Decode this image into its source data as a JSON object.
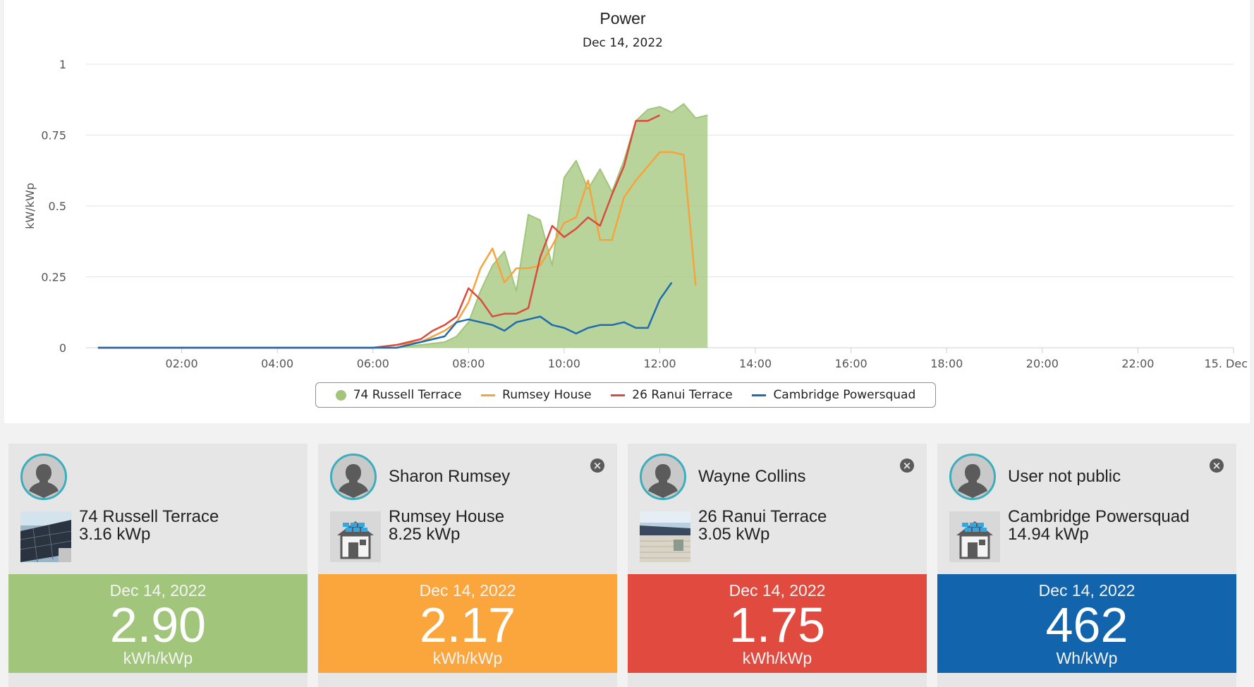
{
  "chart_data": {
    "type": "area",
    "title": "Power",
    "subtitle": "Dec 14, 2022",
    "ylabel": "kW/kWp",
    "ylim": [
      0,
      1
    ],
    "yticks": [
      "0",
      "0.25",
      "0.5",
      "0.75",
      "1"
    ],
    "ytick_values": [
      0,
      0.25,
      0.5,
      0.75,
      1
    ],
    "xlim": [
      0,
      24
    ],
    "xticks": [
      "02:00",
      "04:00",
      "06:00",
      "08:00",
      "10:00",
      "12:00",
      "14:00",
      "16:00",
      "18:00",
      "20:00",
      "22:00",
      "15. Dec"
    ],
    "xtick_values": [
      2,
      4,
      6,
      8,
      10,
      12,
      14,
      16,
      18,
      20,
      22,
      24
    ],
    "grid": true,
    "legend_placement": "bottom-center",
    "series": [
      {
        "name": "74 Russell Terrace",
        "type": "area",
        "color": "#a1c57a",
        "x": [
          0.25,
          6,
          6.5,
          7,
          7.5,
          7.75,
          8,
          8.25,
          8.5,
          8.75,
          9,
          9.25,
          9.5,
          9.75,
          10,
          10.25,
          10.5,
          10.75,
          11,
          11.25,
          11.5,
          11.75,
          12,
          12.25,
          12.5,
          12.75,
          13
        ],
        "y": [
          0,
          0,
          0,
          0.01,
          0.02,
          0.04,
          0.09,
          0.2,
          0.29,
          0.34,
          0.2,
          0.47,
          0.45,
          0.29,
          0.6,
          0.66,
          0.56,
          0.63,
          0.55,
          0.66,
          0.8,
          0.84,
          0.85,
          0.83,
          0.86,
          0.81,
          0.82
        ]
      },
      {
        "name": "Rumsey House",
        "type": "line",
        "color": "#f7a33c",
        "x": [
          0.25,
          6,
          6.5,
          7,
          7.5,
          7.75,
          8,
          8.25,
          8.5,
          8.75,
          9,
          9.25,
          9.5,
          9.75,
          10,
          10.25,
          10.5,
          10.75,
          11,
          11.25,
          11.5,
          11.75,
          12,
          12.25,
          12.5,
          12.75
        ],
        "y": [
          0,
          0,
          0.01,
          0.02,
          0.06,
          0.09,
          0.16,
          0.28,
          0.35,
          0.23,
          0.28,
          0.28,
          0.29,
          0.36,
          0.44,
          0.46,
          0.59,
          0.38,
          0.38,
          0.53,
          0.59,
          0.64,
          0.69,
          0.69,
          0.68,
          0.22
        ]
      },
      {
        "name": "26 Ranui Terrace",
        "type": "line",
        "color": "#d94c3d",
        "x": [
          0.25,
          6,
          6.5,
          7,
          7.25,
          7.5,
          7.75,
          8,
          8.25,
          8.5,
          8.75,
          9,
          9.25,
          9.5,
          9.75,
          10,
          10.25,
          10.5,
          10.75,
          11,
          11.25,
          11.5,
          11.75,
          12
        ],
        "y": [
          0,
          0,
          0.01,
          0.03,
          0.06,
          0.08,
          0.11,
          0.21,
          0.17,
          0.11,
          0.12,
          0.12,
          0.14,
          0.32,
          0.43,
          0.39,
          0.42,
          0.46,
          0.43,
          0.54,
          0.64,
          0.8,
          0.8,
          0.82
        ]
      },
      {
        "name": "Cambridge Powersquad",
        "type": "line",
        "color": "#1f6bb0",
        "x": [
          0.25,
          6,
          6.5,
          7,
          7.5,
          7.75,
          8,
          8.25,
          8.5,
          8.75,
          9,
          9.25,
          9.5,
          9.75,
          10,
          10.25,
          10.5,
          10.75,
          11,
          11.25,
          11.5,
          11.75,
          12,
          12.25
        ],
        "y": [
          0,
          0,
          0,
          0.02,
          0.04,
          0.09,
          0.1,
          0.09,
          0.08,
          0.06,
          0.09,
          0.1,
          0.11,
          0.08,
          0.07,
          0.05,
          0.07,
          0.08,
          0.08,
          0.09,
          0.07,
          0.07,
          0.17,
          0.23
        ]
      }
    ]
  },
  "cards": [
    {
      "owner": "",
      "site": "74 Russell Terrace",
      "capacity": "3.16 kWp",
      "date": "Dec 14, 2022",
      "value": "2.90",
      "unit": "kWh/kWp",
      "color": "#a1c57a",
      "thumb": "photo-roof",
      "closable": false
    },
    {
      "owner": "Sharon Rumsey",
      "site": "Rumsey House",
      "capacity": "8.25 kWp",
      "date": "Dec 14, 2022",
      "value": "2.17",
      "unit": "kWh/kWp",
      "color": "#fba53d",
      "thumb": "house-solar-icon",
      "closable": true
    },
    {
      "owner": "Wayne Collins",
      "site": "26 Ranui Terrace",
      "capacity": "3.05 kWp",
      "date": "Dec 14, 2022",
      "value": "1.75",
      "unit": "kWh/kWp",
      "color": "#e14b3f",
      "thumb": "photo-house",
      "closable": true
    },
    {
      "owner": "User not public",
      "site": "Cambridge Powersquad",
      "capacity": "14.94 kWp",
      "date": "Dec 14, 2022",
      "value": "462",
      "unit": "Wh/kWp",
      "color": "#1265ac",
      "thumb": "house-solar-icon",
      "closable": true
    }
  ],
  "icons": {
    "close": "close-icon",
    "avatar": "user-avatar-icon"
  }
}
